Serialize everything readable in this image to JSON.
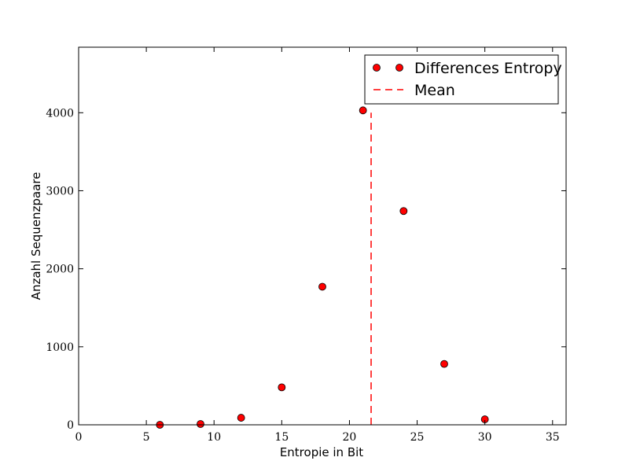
{
  "chart_data": {
    "type": "scatter",
    "xlabel": "Entropie in Bit",
    "ylabel": "Anzahl Sequenzpaare",
    "xlim": [
      0,
      36
    ],
    "ylim": [
      0,
      4840
    ],
    "xticks": [
      0,
      5,
      10,
      15,
      20,
      25,
      30,
      35
    ],
    "yticks": [
      0,
      1000,
      2000,
      3000,
      4000
    ],
    "grid": false,
    "legend_position": "top-right",
    "series": [
      {
        "name": "Differences Entropy",
        "kind": "points",
        "color": "#ff0000",
        "x": [
          6,
          9,
          12,
          15,
          18,
          21,
          24,
          27,
          30
        ],
        "y": [
          0,
          10,
          90,
          480,
          1770,
          4030,
          2740,
          780,
          70
        ]
      },
      {
        "name": "Mean",
        "kind": "vertical-dashed-line",
        "color": "#ff0000",
        "x": 21.6,
        "y_max": 4000
      }
    ]
  }
}
